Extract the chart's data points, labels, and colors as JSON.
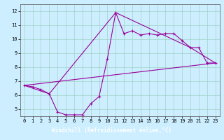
{
  "xlabel": "Windchill (Refroidissement éolien,°C)",
  "bg_color": "#cceeff",
  "label_bg_color": "#6644aa",
  "label_text_color": "#ffffff",
  "line_color": "#990099",
  "xlim": [
    -0.5,
    23.5
  ],
  "ylim": [
    4.5,
    12.5
  ],
  "xticks": [
    0,
    1,
    2,
    3,
    4,
    5,
    6,
    7,
    8,
    9,
    10,
    11,
    12,
    13,
    14,
    15,
    16,
    17,
    18,
    19,
    20,
    21,
    22,
    23
  ],
  "yticks": [
    5,
    6,
    7,
    8,
    9,
    10,
    11,
    12
  ],
  "series1_x": [
    0,
    1,
    2,
    3,
    4,
    5,
    6,
    7,
    8,
    9,
    10,
    11,
    12,
    13,
    14,
    15,
    16,
    17,
    18,
    19,
    20,
    21,
    22,
    23
  ],
  "series1_y": [
    6.7,
    6.6,
    6.4,
    6.1,
    4.8,
    4.6,
    4.6,
    4.6,
    5.4,
    5.9,
    8.6,
    11.9,
    10.4,
    10.6,
    10.3,
    10.4,
    10.3,
    10.4,
    10.4,
    9.9,
    9.4,
    9.4,
    8.3,
    8.3
  ],
  "series2_x": [
    0,
    23
  ],
  "series2_y": [
    6.7,
    8.3
  ],
  "series3_x": [
    0,
    3,
    11,
    20,
    23
  ],
  "series3_y": [
    6.7,
    6.1,
    11.9,
    9.4,
    8.3
  ],
  "lw": 0.8,
  "ms": 2.5,
  "tick_labelsize": 5,
  "xlabel_fontsize": 5.5
}
